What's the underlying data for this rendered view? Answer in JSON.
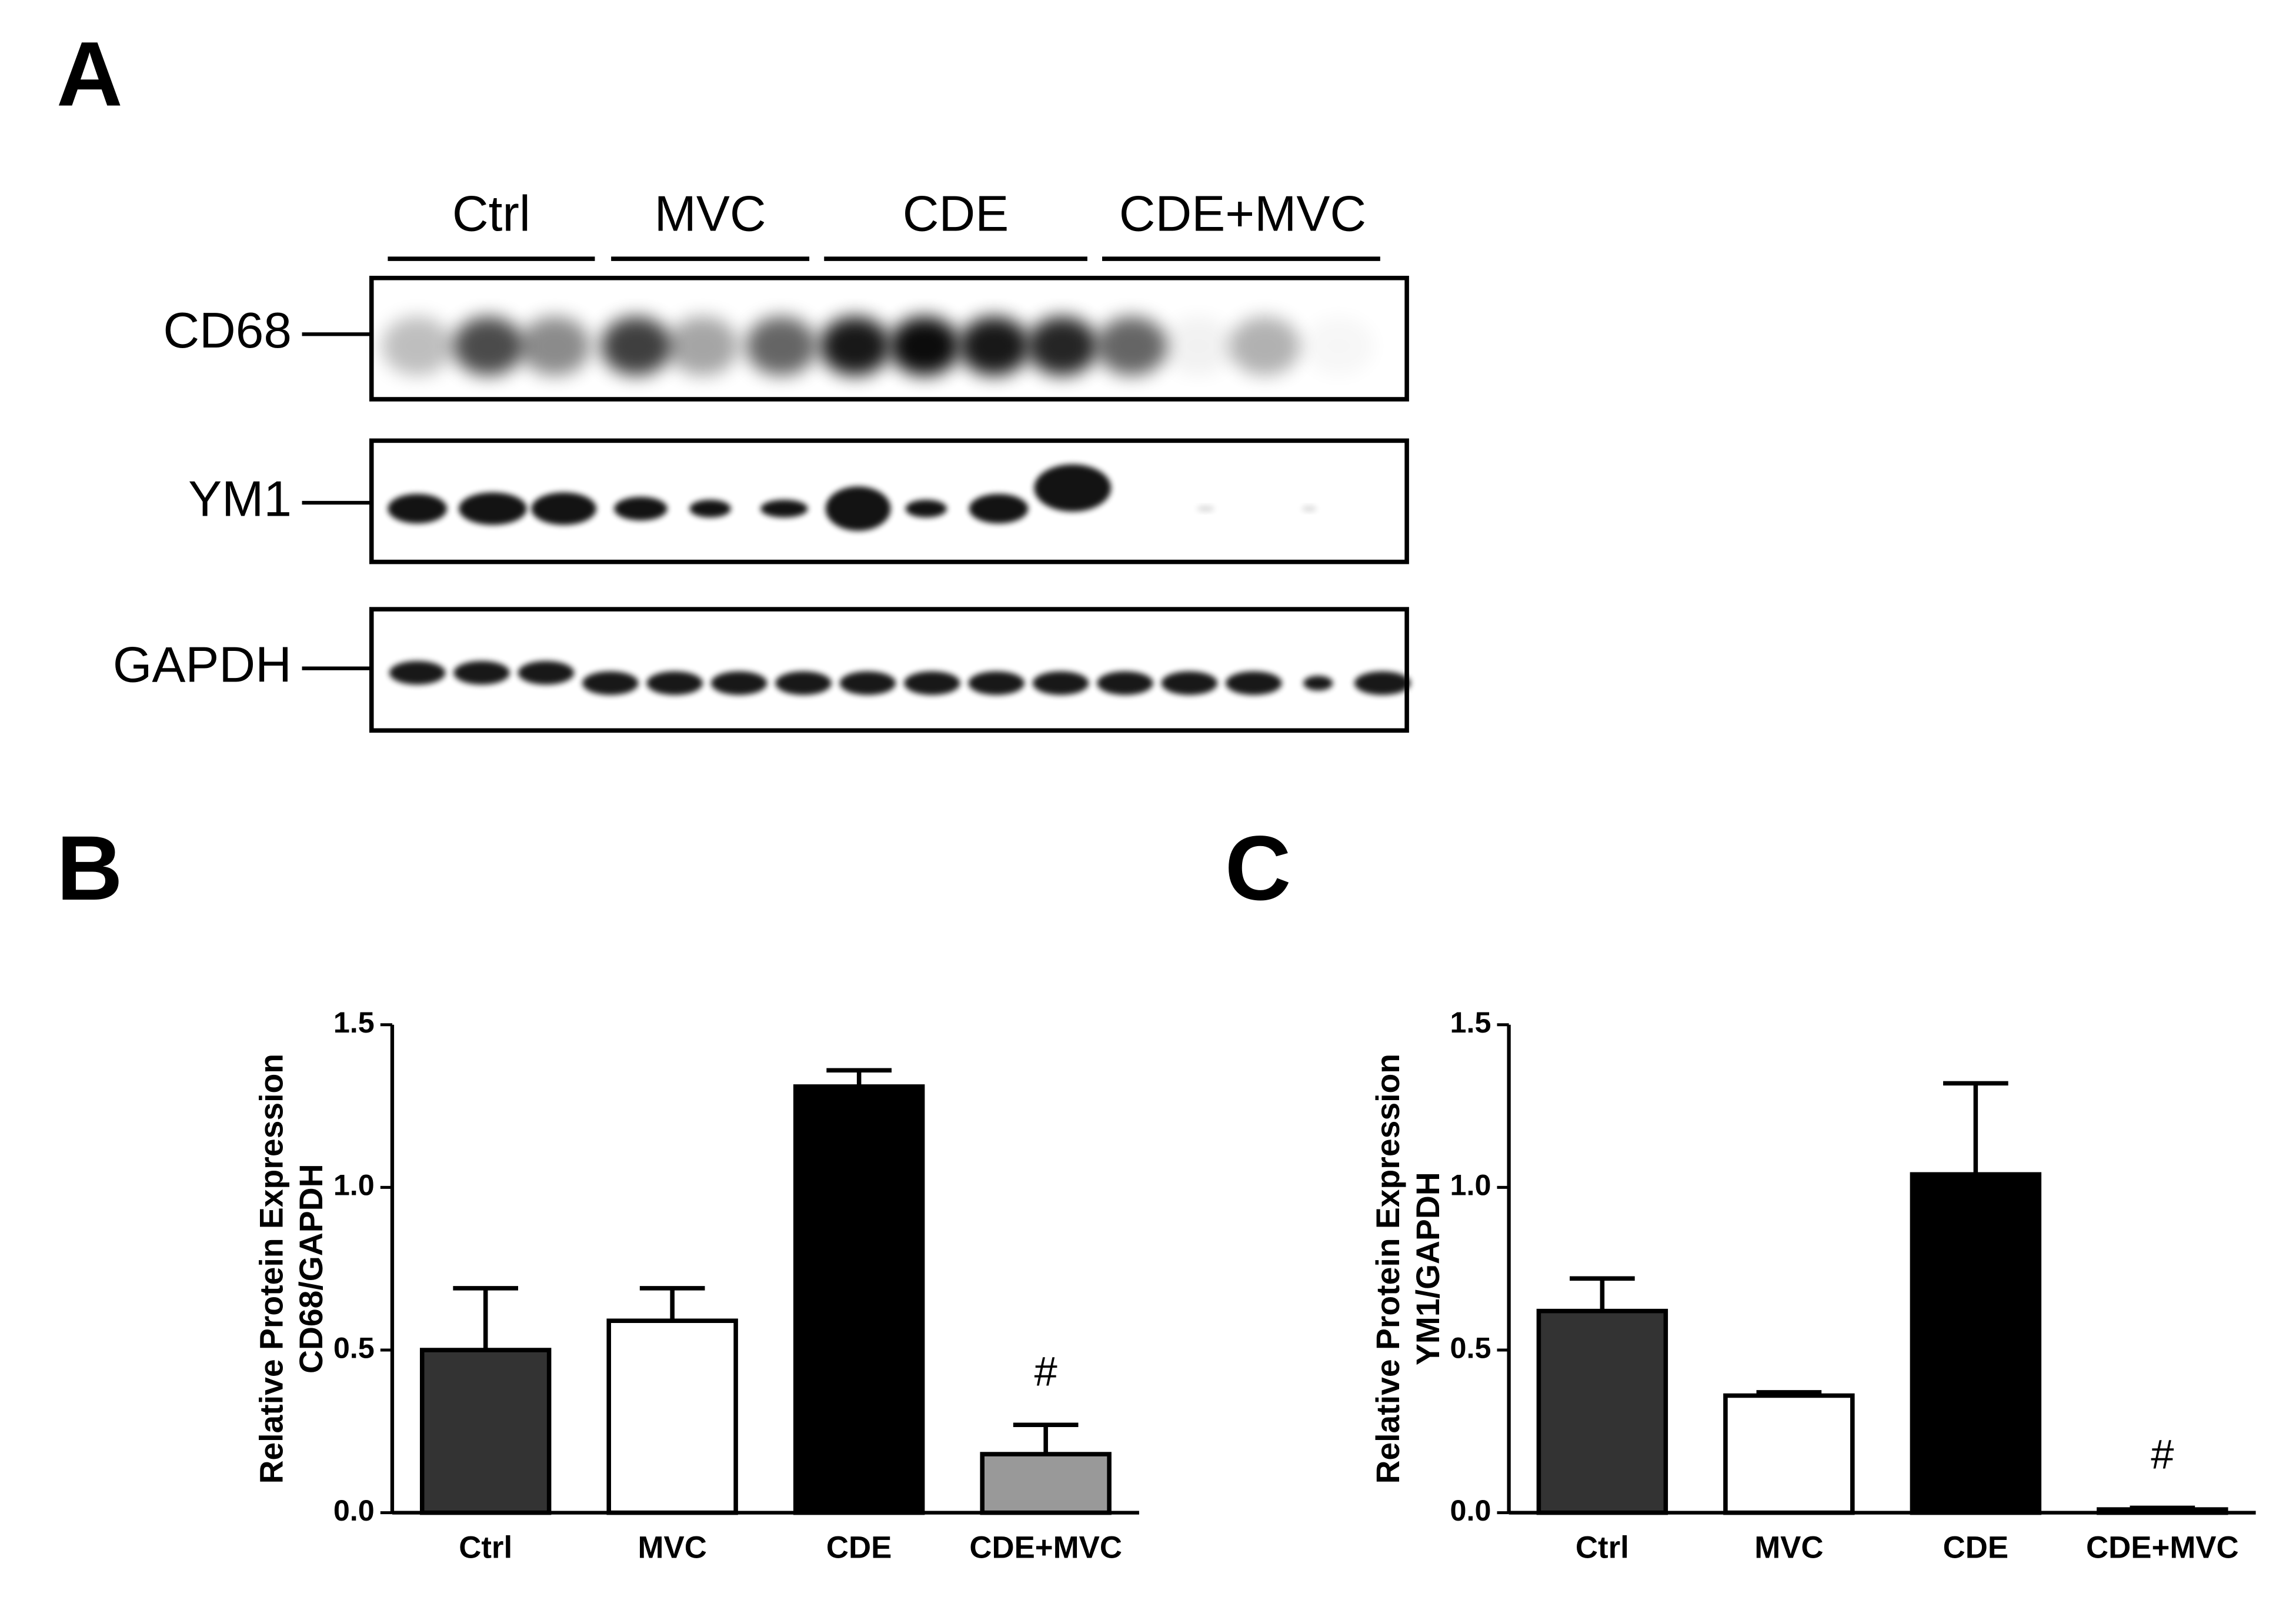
{
  "panel_labels": [
    "A",
    "B",
    "C"
  ],
  "blot": {
    "groups": [
      "Ctrl",
      "MVC",
      "CDE",
      "CDE+MVC"
    ],
    "proteins": [
      "CD68",
      "YM1",
      "GAPDH"
    ]
  },
  "chart_data": [
    {
      "type": "bar",
      "ylabel": [
        "Relative Protein Expression",
        "CD68/GAPDH"
      ],
      "categories": [
        "Ctrl",
        "MVC",
        "CDE",
        "CDE+MVC"
      ],
      "values": [
        0.5,
        0.59,
        1.31,
        0.18
      ],
      "errors": [
        0.19,
        0.1,
        0.05,
        0.09
      ],
      "value_annotations": [
        null,
        null,
        null,
        "#"
      ],
      "colors": [
        "#333333",
        "#ffffff",
        "#000000",
        "#999999"
      ],
      "ylim": [
        0,
        1.5
      ],
      "yticks": [
        {
          "value": 0,
          "label": "0.0"
        },
        0.5,
        {
          "value": 1,
          "label": "1.0"
        },
        1.5
      ]
    },
    {
      "type": "bar",
      "ylabel": [
        "Relative Protein Expression",
        "YM1/GAPDH"
      ],
      "categories": [
        "Ctrl",
        "MVC",
        "CDE",
        "CDE+MVC"
      ],
      "values": [
        0.62,
        0.36,
        1.04,
        0.01
      ],
      "errors": [
        0.1,
        0.01,
        0.28,
        0.005
      ],
      "value_annotations": [
        null,
        null,
        null,
        "#"
      ],
      "colors": [
        "#333333",
        "#ffffff",
        "#000000",
        "#999999"
      ],
      "ylim": [
        0,
        1.5
      ],
      "yticks": [
        {
          "value": 0,
          "label": "0.0"
        },
        0.5,
        {
          "value": 1,
          "label": "1.0"
        },
        1.5
      ]
    }
  ]
}
